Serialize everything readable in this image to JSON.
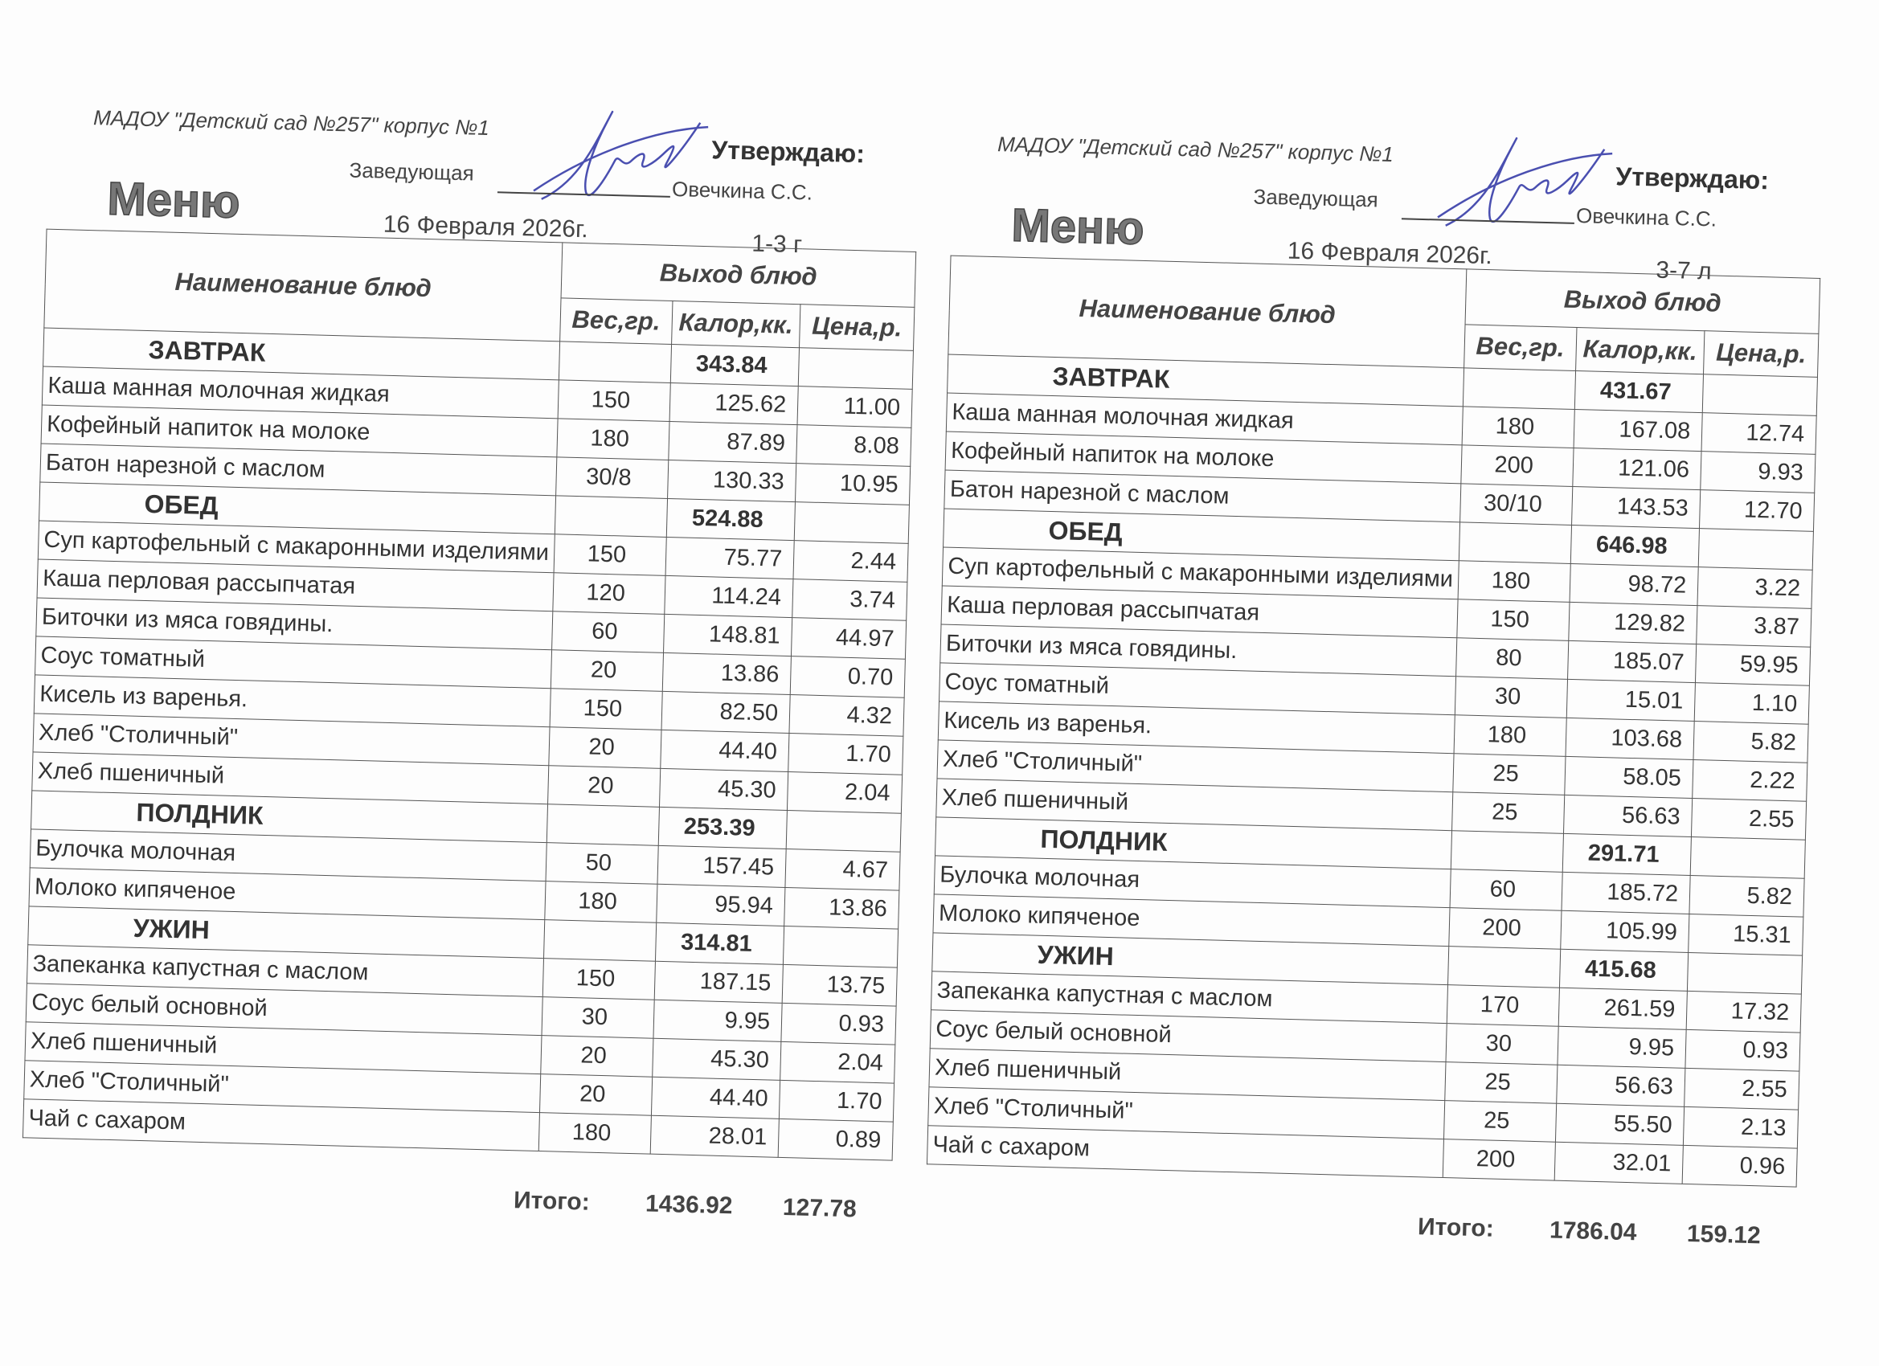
{
  "menus": [
    {
      "org": "МАДОУ \"Детский сад №257\" корпус №1",
      "approve": "Утверждаю:",
      "head_title": "Заведующая",
      "director": "Овечкина С.С.",
      "title": "Меню",
      "date": "16 Февраля 2026г.",
      "age_group": "1-3 г",
      "columns": {
        "name": "Наименование блюд",
        "output": "Выход блюд",
        "weight": "Вес,гр.",
        "kcal": "Калор,кк.",
        "price": "Цена,р."
      },
      "rows": [
        {
          "section": true,
          "name": "ЗАВТРАК",
          "kcal": "343.84"
        },
        {
          "name": "Каша манная молочная жидкая",
          "weight": "150",
          "kcal": "125.62",
          "price": "11.00"
        },
        {
          "name": "Кофейный напиток на молоке",
          "weight": "180",
          "kcal": "87.89",
          "price": "8.08"
        },
        {
          "name": "Батон нарезной с маслом",
          "weight": "30/8",
          "kcal": "130.33",
          "price": "10.95"
        },
        {
          "section": true,
          "name": "ОБЕД",
          "kcal": "524.88"
        },
        {
          "name": "Суп картофельный с макаронными изделиями",
          "weight": "150",
          "kcal": "75.77",
          "price": "2.44"
        },
        {
          "name": "Каша перловая рассыпчатая",
          "weight": "120",
          "kcal": "114.24",
          "price": "3.74"
        },
        {
          "name": "Биточки из мяса говядины.",
          "weight": "60",
          "kcal": "148.81",
          "price": "44.97"
        },
        {
          "name": "Соус томатный",
          "weight": "20",
          "kcal": "13.86",
          "price": "0.70"
        },
        {
          "name": "Кисель из варенья.",
          "weight": "150",
          "kcal": "82.50",
          "price": "4.32"
        },
        {
          "name": "Хлеб \"Столичный\"",
          "weight": "20",
          "kcal": "44.40",
          "price": "1.70"
        },
        {
          "name": "Хлеб пшеничный",
          "weight": "20",
          "kcal": "45.30",
          "price": "2.04"
        },
        {
          "section": true,
          "name": "ПОЛДНИК",
          "kcal": "253.39"
        },
        {
          "name": "Булочка молочная",
          "weight": "50",
          "kcal": "157.45",
          "price": "4.67"
        },
        {
          "name": "Молоко кипяченое",
          "weight": "180",
          "kcal": "95.94",
          "price": "13.86"
        },
        {
          "section": true,
          "name": "УЖИН",
          "kcal": "314.81"
        },
        {
          "name": "Запеканка капустная с маслом",
          "weight": "150",
          "kcal": "187.15",
          "price": "13.75"
        },
        {
          "name": "Соус белый основной",
          "weight": "30",
          "kcal": "9.95",
          "price": "0.93"
        },
        {
          "name": "Хлеб пшеничный",
          "weight": "20",
          "kcal": "45.30",
          "price": "2.04"
        },
        {
          "name": "Хлеб \"Столичный\"",
          "weight": "20",
          "kcal": "44.40",
          "price": "1.70"
        },
        {
          "name": "Чай с сахаром",
          "weight": "180",
          "kcal": "28.01",
          "price": "0.89"
        }
      ],
      "total": {
        "label": "Итого:",
        "kcal": "1436.92",
        "price": "127.78"
      }
    },
    {
      "org": "МАДОУ \"Детский сад №257\" корпус №1",
      "approve": "Утверждаю:",
      "head_title": "Заведующая",
      "director": "Овечкина С.С.",
      "title": "Меню",
      "date": "16 Февраля 2026г.",
      "age_group": "3-7 л",
      "columns": {
        "name": "Наименование блюд",
        "output": "Выход блюд",
        "weight": "Вес,гр.",
        "kcal": "Калор,кк.",
        "price": "Цена,р."
      },
      "rows": [
        {
          "section": true,
          "name": "ЗАВТРАК",
          "kcal": "431.67"
        },
        {
          "name": "Каша манная молочная жидкая",
          "weight": "180",
          "kcal": "167.08",
          "price": "12.74"
        },
        {
          "name": "Кофейный напиток на молоке",
          "weight": "200",
          "kcal": "121.06",
          "price": "9.93"
        },
        {
          "name": "Батон нарезной с маслом",
          "weight": "30/10",
          "kcal": "143.53",
          "price": "12.70"
        },
        {
          "section": true,
          "name": "ОБЕД",
          "kcal": "646.98"
        },
        {
          "name": "Суп картофельный с макаронными изделиями",
          "weight": "180",
          "kcal": "98.72",
          "price": "3.22"
        },
        {
          "name": "Каша перловая рассыпчатая",
          "weight": "150",
          "kcal": "129.82",
          "price": "3.87"
        },
        {
          "name": "Биточки из мяса говядины.",
          "weight": "80",
          "kcal": "185.07",
          "price": "59.95"
        },
        {
          "name": "Соус томатный",
          "weight": "30",
          "kcal": "15.01",
          "price": "1.10"
        },
        {
          "name": "Кисель из варенья.",
          "weight": "180",
          "kcal": "103.68",
          "price": "5.82"
        },
        {
          "name": "Хлеб \"Столичный\"",
          "weight": "25",
          "kcal": "58.05",
          "price": "2.22"
        },
        {
          "name": "Хлеб пшеничный",
          "weight": "25",
          "kcal": "56.63",
          "price": "2.55"
        },
        {
          "section": true,
          "name": "ПОЛДНИК",
          "kcal": "291.71"
        },
        {
          "name": "Булочка молочная",
          "weight": "60",
          "kcal": "185.72",
          "price": "5.82"
        },
        {
          "name": "Молоко кипяченое",
          "weight": "200",
          "kcal": "105.99",
          "price": "15.31"
        },
        {
          "section": true,
          "name": "УЖИН",
          "kcal": "415.68"
        },
        {
          "name": "Запеканка капустная с маслом",
          "weight": "170",
          "kcal": "261.59",
          "price": "17.32"
        },
        {
          "name": "Соус белый основной",
          "weight": "30",
          "kcal": "9.95",
          "price": "0.93"
        },
        {
          "name": "Хлеб пшеничный",
          "weight": "25",
          "kcal": "56.63",
          "price": "2.55"
        },
        {
          "name": "Хлеб \"Столичный\"",
          "weight": "25",
          "kcal": "55.50",
          "price": "2.13"
        },
        {
          "name": "Чай с сахаром",
          "weight": "200",
          "kcal": "32.01",
          "price": "0.96"
        }
      ],
      "total": {
        "label": "Итого:",
        "kcal": "1786.04",
        "price": "159.12"
      }
    }
  ],
  "colors": {
    "ink": "#333333",
    "signature": "#4a4fb0"
  }
}
